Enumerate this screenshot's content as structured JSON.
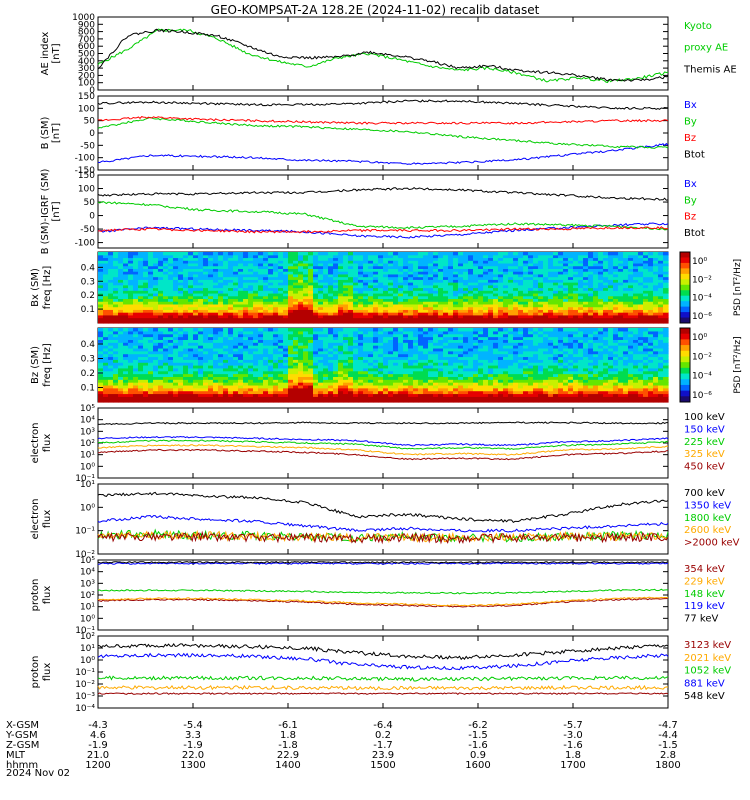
{
  "chart_data": {
    "title": "GEO-KOMPSAT-2A 128.2E (2024-11-02) recalib dataset",
    "type": "line",
    "time_axis": {
      "ticks": [
        "1200",
        "1300",
        "1400",
        "1500",
        "1600",
        "1700",
        "1800"
      ],
      "rows": [
        {
          "label": "X-GSM",
          "values": [
            "-4.3",
            "-5.4",
            "-6.1",
            "-6.4",
            "-6.2",
            "-5.7",
            "-4.7"
          ]
        },
        {
          "label": "Y-GSM",
          "values": [
            "4.6",
            "3.3",
            "1.8",
            "0.2",
            "-1.5",
            "-3.0",
            "-4.4"
          ]
        },
        {
          "label": "Z-GSM",
          "values": [
            "-1.9",
            "-1.9",
            "-1.8",
            "-1.7",
            "-1.6",
            "-1.6",
            "-1.5"
          ]
        },
        {
          "label": "MLT",
          "values": [
            "21.0",
            "22.0",
            "22.9",
            "23.9",
            "0.9",
            "1.8",
            "2.8"
          ]
        },
        {
          "label": "hhmm",
          "values": [
            "1200",
            "1300",
            "1400",
            "1500",
            "1600",
            "1700",
            "1800"
          ]
        }
      ],
      "date": "2024 Nov 02"
    },
    "panels": [
      {
        "id": "ae",
        "ylabel": "AE index",
        "unit": "[nT]",
        "scale": "linear",
        "ylim": [
          0,
          1000
        ],
        "ticks": [
          "0",
          "100",
          "200",
          "300",
          "400",
          "500",
          "600",
          "700",
          "800",
          "900",
          "1000"
        ],
        "series": [
          {
            "name": "Kyoto proxy AE",
            "color": "#00cc00",
            "values": [
              350,
              560,
              820,
              820,
              700,
              500,
              390,
              320,
              440,
              500,
              420,
              330,
              270,
              300,
              230,
              120,
              170,
              120,
              160,
              240
            ]
          },
          {
            "name": "Themis AE",
            "color": "#000000",
            "values": [
              300,
              750,
              820,
              790,
              740,
              600,
              460,
              440,
              450,
              520,
              470,
              400,
              300,
              330,
              270,
              240,
              200,
              140,
              130,
              180
            ]
          }
        ],
        "legend": [
          {
            "text": "Kyoto",
            "color": "#00cc00"
          },
          {
            "text": "proxy AE",
            "color": "#00cc00"
          },
          {
            "text": "Themis AE",
            "color": "#000000"
          }
        ]
      },
      {
        "id": "bsm",
        "ylabel": "B (SM)",
        "unit": "[nT]",
        "scale": "linear",
        "ylim": [
          -150,
          150
        ],
        "ticks": [
          "-150",
          "-100",
          "-50",
          "0",
          "50",
          "100",
          "150"
        ],
        "series": [
          {
            "name": "Bx",
            "color": "#0000ff",
            "values": [
              -120,
              -90,
              -95,
              -100,
              -110,
              -115,
              -125,
              -120,
              -110,
              -90,
              -70,
              -45
            ]
          },
          {
            "name": "By",
            "color": "#00cc00",
            "values": [
              20,
              60,
              45,
              30,
              25,
              15,
              5,
              -15,
              -30,
              -45,
              -55,
              -60
            ]
          },
          {
            "name": "Bz",
            "color": "#ff0000",
            "values": [
              50,
              65,
              55,
              50,
              45,
              40,
              40,
              40,
              40,
              45,
              50,
              50
            ]
          },
          {
            "name": "Btot",
            "color": "#000000",
            "values": [
              120,
              125,
              120,
              115,
              115,
              120,
              130,
              130,
              120,
              110,
              100,
              100
            ]
          }
        ],
        "legend": [
          {
            "text": "Bx",
            "color": "#0000ff"
          },
          {
            "text": "By",
            "color": "#00cc00"
          },
          {
            "text": "Bz",
            "color": "#ff0000"
          },
          {
            "text": "Btot",
            "color": "#000000"
          }
        ]
      },
      {
        "id": "bigrf",
        "ylabel": "B (SM)-IGRF (SM)",
        "unit": "[nT]",
        "scale": "linear",
        "ylim": [
          -120,
          150
        ],
        "ticks": [
          "-100",
          "-50",
          "0",
          "50",
          "100",
          "150"
        ],
        "series": [
          {
            "name": "Bx",
            "color": "#0000ff",
            "values": [
              -60,
              -45,
              -50,
              -55,
              -60,
              -75,
              -80,
              -70,
              -55,
              -45,
              -35,
              -30
            ]
          },
          {
            "name": "By",
            "color": "#00cc00",
            "values": [
              50,
              40,
              20,
              15,
              5,
              -40,
              -45,
              -40,
              -30,
              -35,
              -40,
              -50
            ]
          },
          {
            "name": "Bz",
            "color": "#ff0000",
            "values": [
              -55,
              -50,
              -55,
              -60,
              -60,
              -55,
              -55,
              -55,
              -50,
              -50,
              -45,
              -45
            ]
          },
          {
            "name": "Btot",
            "color": "#000000",
            "values": [
              75,
              80,
              80,
              85,
              85,
              95,
              100,
              95,
              85,
              75,
              65,
              60
            ]
          }
        ],
        "legend": [
          {
            "text": "Bx",
            "color": "#0000ff"
          },
          {
            "text": "By",
            "color": "#00cc00"
          },
          {
            "text": "Bz",
            "color": "#ff0000"
          },
          {
            "text": "Btot",
            "color": "#000000"
          }
        ]
      },
      {
        "id": "bx_spec",
        "type": "heatmap",
        "ylabel": "Bx (SM)",
        "ylabel2": "freq [Hz]",
        "ticks": [
          "0.1",
          "0.2",
          "0.3",
          "0.4"
        ],
        "cbar_label": "PSD [nT²/Hz]",
        "cbar_ticks": [
          "10⁰",
          "10⁻²",
          "10⁻⁴",
          "10⁻⁶"
        ]
      },
      {
        "id": "bz_spec",
        "type": "heatmap",
        "ylabel": "Bz (SM)",
        "ylabel2": "freq [Hz]",
        "ticks": [
          "0.1",
          "0.2",
          "0.3",
          "0.4"
        ],
        "cbar_label": "PSD [nT²/Hz]",
        "cbar_ticks": [
          "10⁰",
          "10⁻²",
          "10⁻⁴",
          "10⁻⁶"
        ]
      },
      {
        "id": "e_low",
        "ylabel": "electron",
        "ylabel2": "flux",
        "scale": "log",
        "ylim": [
          -1,
          5
        ],
        "ticks": [
          "10⁻¹",
          "10⁰",
          "10¹",
          "10²",
          "10³",
          "10⁴",
          "10⁵"
        ],
        "series": [
          {
            "name": "100 keV",
            "color": "#000000",
            "values": [
              3.6,
              3.7,
              3.7,
              3.7,
              3.75,
              3.7,
              3.7,
              3.7,
              3.75,
              3.75,
              3.7,
              3.7
            ]
          },
          {
            "name": "150 keV",
            "color": "#0000ff",
            "values": [
              2.4,
              2.5,
              2.5,
              2.4,
              2.3,
              2.2,
              1.8,
              1.9,
              1.8,
              2.1,
              2.2,
              2.4
            ]
          },
          {
            "name": "225 keV",
            "color": "#00cc00",
            "values": [
              2.0,
              2.2,
              2.2,
              2.1,
              2.0,
              1.9,
              1.5,
              1.6,
              1.5,
              1.8,
              1.9,
              2.1
            ]
          },
          {
            "name": "325 keV",
            "color": "#ffaa00",
            "values": [
              1.6,
              1.8,
              1.8,
              1.7,
              1.6,
              1.4,
              1.0,
              1.1,
              1.0,
              1.4,
              1.5,
              1.7
            ]
          },
          {
            "name": "450 keV",
            "color": "#990000",
            "values": [
              1.2,
              1.4,
              1.4,
              1.3,
              1.2,
              1.0,
              0.6,
              0.7,
              0.6,
              1.0,
              1.1,
              1.3
            ]
          }
        ],
        "legend": [
          {
            "text": "100 keV",
            "color": "#000000"
          },
          {
            "text": "150 keV",
            "color": "#0000ff"
          },
          {
            "text": "225 keV",
            "color": "#00cc00"
          },
          {
            "text": "325 keV",
            "color": "#ffaa00"
          },
          {
            "text": "450 keV",
            "color": "#990000"
          }
        ]
      },
      {
        "id": "e_high",
        "ylabel": "electron",
        "ylabel2": "flux",
        "scale": "log",
        "ylim": [
          -2,
          1
        ],
        "ticks": [
          "10⁻²",
          "10⁻¹",
          "10⁰",
          "10¹"
        ],
        "series": [
          {
            "name": "700 keV",
            "color": "#000000",
            "values": [
              0.5,
              0.6,
              0.5,
              0.4,
              0.2,
              -0.4,
              -0.3,
              -0.5,
              -0.6,
              -0.3,
              0.1,
              0.3
            ]
          },
          {
            "name": "1350 keV",
            "color": "#0000ff",
            "values": [
              -0.6,
              -0.4,
              -0.5,
              -0.6,
              -0.8,
              -1.0,
              -0.9,
              -1.0,
              -1.0,
              -0.9,
              -0.8,
              -0.7
            ]
          },
          {
            "name": "1800 keV",
            "color": "#00cc00",
            "values": [
              -1.2,
              -1.15,
              -1.2,
              -1.2,
              -1.25,
              -1.3,
              -1.25,
              -1.3,
              -1.3,
              -1.25,
              -1.2,
              -1.2
            ]
          },
          {
            "name": "2600 keV",
            "color": "#ffaa00",
            "values": [
              -1.25,
              -1.2,
              -1.2,
              -1.25,
              -1.25,
              -1.3,
              -1.3,
              -1.3,
              -1.3,
              -1.25,
              -1.25,
              -1.2
            ]
          },
          {
            "name": ">2000 keV",
            "color": "#990000",
            "values": [
              -1.3,
              -1.25,
              -1.25,
              -1.3,
              -1.3,
              -1.35,
              -1.3,
              -1.35,
              -1.3,
              -1.3,
              -1.3,
              -1.25
            ]
          }
        ],
        "legend": [
          {
            "text": "700 keV",
            "color": "#000000"
          },
          {
            "text": "1350 keV",
            "color": "#0000ff"
          },
          {
            "text": "1800 keV",
            "color": "#00cc00"
          },
          {
            "text": "2600 keV",
            "color": "#ffaa00"
          },
          {
            "text": ">2000 keV",
            "color": "#990000"
          }
        ]
      },
      {
        "id": "p_low",
        "ylabel": "proton",
        "ylabel2": "flux",
        "scale": "log",
        "ylim": [
          -1,
          5
        ],
        "ticks": [
          "10⁻¹",
          "10⁰",
          "10¹",
          "10²",
          "10³",
          "10⁴",
          "10⁵"
        ],
        "series": [
          {
            "name": "354 keV",
            "color": "#990000",
            "values": [
              1.5,
              1.6,
              1.6,
              1.5,
              1.4,
              1.2,
              1.1,
              1.0,
              1.1,
              1.4,
              1.6,
              1.7
            ]
          },
          {
            "name": "229 keV",
            "color": "#ffaa00",
            "values": [
              1.6,
              1.7,
              1.7,
              1.6,
              1.5,
              1.3,
              1.2,
              1.1,
              1.2,
              1.5,
              1.7,
              1.8
            ]
          },
          {
            "name": "148 keV",
            "color": "#00cc00",
            "values": [
              2.4,
              2.4,
              2.4,
              2.35,
              2.3,
              2.2,
              2.2,
              2.15,
              2.2,
              2.3,
              2.4,
              2.45
            ]
          },
          {
            "name": "119 keV",
            "color": "#0000ff",
            "values": [
              4.7,
              4.7,
              4.7,
              4.7,
              4.7,
              4.7,
              4.7,
              4.7,
              4.7,
              4.7,
              4.7,
              4.7
            ]
          },
          {
            "name": "77 keV",
            "color": "#000000",
            "values": [
              4.8,
              4.8,
              4.8,
              4.8,
              4.8,
              4.8,
              4.8,
              4.8,
              4.8,
              4.8,
              4.8,
              4.8
            ]
          }
        ],
        "legend": [
          {
            "text": "354 keV",
            "color": "#990000"
          },
          {
            "text": "229 keV",
            "color": "#ffaa00"
          },
          {
            "text": "148 keV",
            "color": "#00cc00"
          },
          {
            "text": "119 keV",
            "color": "#0000ff"
          },
          {
            "text": "77 keV",
            "color": "#000000"
          }
        ]
      },
      {
        "id": "p_high",
        "ylabel": "proton",
        "ylabel2": "flux",
        "scale": "log",
        "ylim": [
          -4,
          2
        ],
        "ticks": [
          "10⁻⁴",
          "10⁻³",
          "10⁻²",
          "10⁻¹",
          "10⁰",
          "10¹",
          "10²"
        ],
        "series": [
          {
            "name": "3123 keV",
            "color": "#990000",
            "values": [
              -2.8,
              -2.8,
              -2.8,
              -2.8,
              -2.8,
              -2.8,
              -2.8,
              -2.8,
              -2.8,
              -2.8,
              -2.8,
              -2.8
            ]
          },
          {
            "name": "2021 keV",
            "color": "#ffaa00",
            "values": [
              -2.3,
              -2.3,
              -2.3,
              -2.3,
              -2.3,
              -2.35,
              -2.35,
              -2.35,
              -2.35,
              -2.3,
              -2.3,
              -2.3
            ]
          },
          {
            "name": "1052 keV",
            "color": "#00cc00",
            "values": [
              -1.5,
              -1.5,
              -1.5,
              -1.5,
              -1.5,
              -1.55,
              -1.6,
              -1.6,
              -1.55,
              -1.5,
              -1.5,
              -1.5
            ]
          },
          {
            "name": "881 keV",
            "color": "#0000ff",
            "values": [
              0.3,
              0.4,
              0.4,
              0.3,
              0.1,
              -0.4,
              -0.6,
              -0.7,
              -0.5,
              -0.1,
              0.2,
              0.4
            ]
          },
          {
            "name": "548 keV",
            "color": "#000000",
            "values": [
              1.1,
              1.2,
              1.2,
              1.1,
              1.0,
              0.6,
              0.3,
              0.2,
              0.4,
              0.7,
              1.0,
              1.2
            ]
          }
        ],
        "legend": [
          {
            "text": "3123 keV",
            "color": "#990000"
          },
          {
            "text": "2021 keV",
            "color": "#ffaa00"
          },
          {
            "text": "1052 keV",
            "color": "#00cc00"
          },
          {
            "text": "881 keV",
            "color": "#0000ff"
          },
          {
            "text": "548 keV",
            "color": "#000000"
          }
        ]
      }
    ]
  }
}
